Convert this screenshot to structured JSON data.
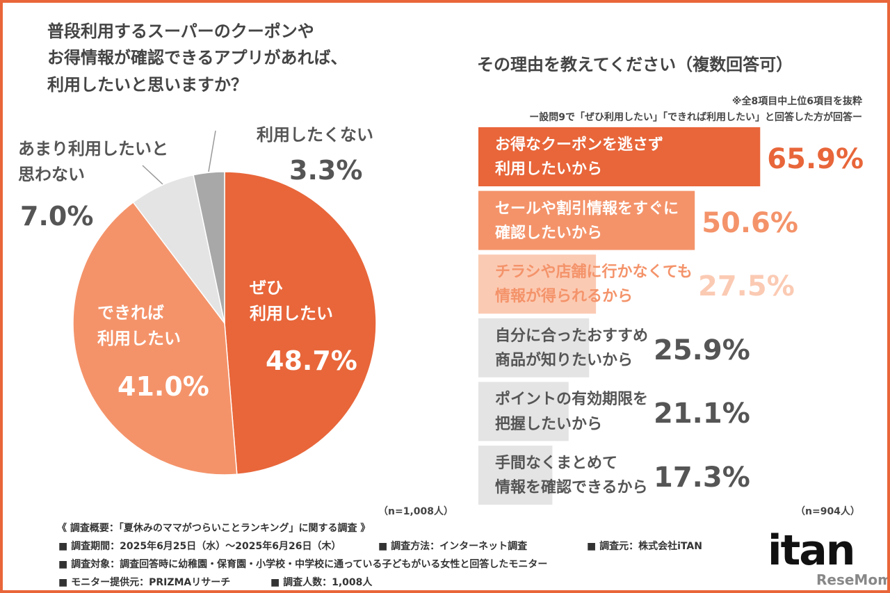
{
  "chart_data": [
    {
      "type": "pie",
      "title": "普段利用するスーパーのクーポンや\nお得情報が確認できるアプリがあれば、\n利用したいと思いますか？",
      "categories": [
        "ぜひ\n利用したい",
        "できれば\n利用したい",
        "あまり利用したいと\n思わない",
        "利用したくない"
      ],
      "values": [
        48.7,
        41.0,
        7.0,
        3.3
      ],
      "value_labels": [
        "48.7%",
        "41.0%",
        "7.0%",
        "3.3%"
      ],
      "colors": [
        "#e8663a",
        "#f4936a",
        "#e4e4e4",
        "#a8a8a8"
      ],
      "note": "（n=1,008人）"
    },
    {
      "type": "bar",
      "orientation": "horizontal",
      "title": "その理由を教えてください（複数回答可）",
      "subtitle": "※全8項目中上位6項目を抜粋",
      "annotation": "ー設問9で「ぜひ利用したい」「できれば利用したい」と回答した方が回答ー",
      "categories": [
        "お得なクーポンを逃さず\n利用したいから",
        "セールや割引情報をすぐに\n確認したいから",
        "チラシや店舗に行かなくても\n情報が得られるから",
        "自分に合ったおすすめ\n商品が知りたいから",
        "ポイントの有効期限を\n把握したいから",
        "手間なくまとめて\n情報を確認できるから"
      ],
      "values": [
        65.9,
        50.6,
        27.5,
        25.9,
        21.1,
        17.3
      ],
      "value_labels": [
        "65.9%",
        "50.6%",
        "27.5%",
        "25.9%",
        "21.1%",
        "17.3%"
      ],
      "colors": [
        "#e8663a",
        "#f4936a",
        "#fbcab3",
        "#e4e4e4",
        "#e4e4e4",
        "#e4e4e4"
      ],
      "note": "（n=904人）"
    }
  ],
  "survey": {
    "title": "《 調査概要：「夏休みのママがつらいことランキング」に関する調査 》",
    "items": [
      "■ 調査期間：2025年6月25日（水）〜2025年6月26日（木）",
      "■ 調査方法：インターネット調査",
      "■ 調査元：株式会社iTAN",
      "■ 調査対象：調査回答時に幼稚園・保育園・小学校・中学校に通っている子どもがいる女性と回答したモニター",
      "■ モニター提供元：PRIZMAリサーチ",
      "■ 調査人数：1,008人"
    ]
  },
  "logo": {
    "brand": "itan",
    "partner": "ReseMom"
  }
}
